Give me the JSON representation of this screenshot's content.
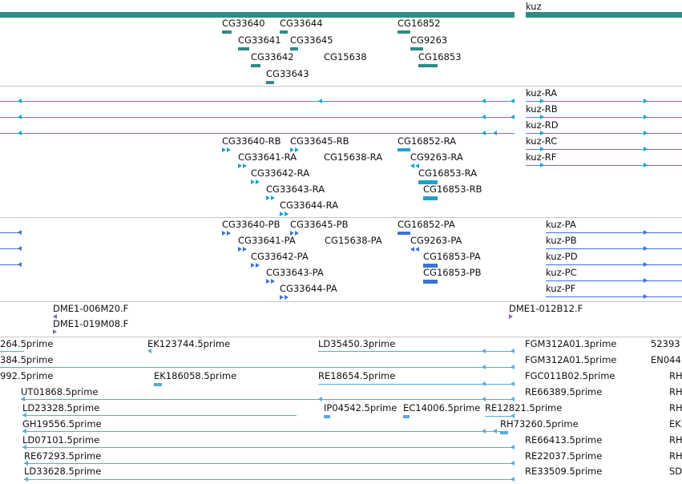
{
  "colors": {
    "gene": "#2e8b87",
    "transcript_ra": "#1fa3c8",
    "protein": "#3b73d6",
    "clone": "#8a66c4",
    "est": "#5aa9d6",
    "divider": "#c8c8c8"
  },
  "tracks": {
    "genes": {
      "items": [
        {
          "label": "CG33640"
        },
        {
          "label": "CG33644"
        },
        {
          "label": "CG16852"
        },
        {
          "label": "kuz"
        },
        {
          "label": "CG33641"
        },
        {
          "label": "CG33645"
        },
        {
          "label": "CG9263"
        },
        {
          "label": "CG33642"
        },
        {
          "label": "CG15638"
        },
        {
          "label": "CG16853"
        },
        {
          "label": "CG33643"
        }
      ]
    },
    "transcripts": {
      "items": [
        {
          "label": "kuz-RA"
        },
        {
          "label": "kuz-RB"
        },
        {
          "label": "kuz-RD"
        },
        {
          "label": "CG33640-RB"
        },
        {
          "label": "CG33645-RB"
        },
        {
          "label": "CG16852-RA"
        },
        {
          "label": "kuz-RC"
        },
        {
          "label": "CG33641-RA"
        },
        {
          "label": "CG15638-RA"
        },
        {
          "label": "CG9263-RA"
        },
        {
          "label": "kuz-RF"
        },
        {
          "label": "CG33642-RA"
        },
        {
          "label": "CG16853-RA"
        },
        {
          "label": "CG33643-RA"
        },
        {
          "label": "CG16853-RB"
        },
        {
          "label": "CG33644-RA"
        }
      ]
    },
    "proteins": {
      "items": [
        {
          "label": "CG33640-PB"
        },
        {
          "label": "CG33645-PB"
        },
        {
          "label": "CG16852-PA"
        },
        {
          "label": "kuz-PA"
        },
        {
          "label": "CG33641-PA"
        },
        {
          "label": "CG15638-PA"
        },
        {
          "label": "CG9263-PA"
        },
        {
          "label": "kuz-PB"
        },
        {
          "label": "CG33642-PA"
        },
        {
          "label": "CG16853-PA"
        },
        {
          "label": "kuz-PD"
        },
        {
          "label": "CG33643-PA"
        },
        {
          "label": "CG16853-PB"
        },
        {
          "label": "kuz-PC"
        },
        {
          "label": "CG33644-PA"
        },
        {
          "label": "kuz-PF"
        }
      ]
    },
    "clones": {
      "items": [
        {
          "label": "DME1-006M20.F"
        },
        {
          "label": "DME1-012B12.F"
        },
        {
          "label": "DME1-019M08.F"
        }
      ]
    },
    "ests": {
      "items": [
        {
          "label": "264.5prime"
        },
        {
          "label": "EK123744.5prime"
        },
        {
          "label": "LD35450.3prime"
        },
        {
          "label": "FGM312A01.3prime"
        },
        {
          "label": "52393"
        },
        {
          "label": "384.5prime"
        },
        {
          "label": "FGM312A01.5prime"
        },
        {
          "label": "EN044"
        },
        {
          "label": "992.5prime"
        },
        {
          "label": "EK186058.5prime"
        },
        {
          "label": "RE18654.5prime"
        },
        {
          "label": "FGC011B02.5prime"
        },
        {
          "label": "RH"
        },
        {
          "label": "UT01868.5prime"
        },
        {
          "label": "RE66389.5prime"
        },
        {
          "label": "RH"
        },
        {
          "label": "LD23328.5prime"
        },
        {
          "label": "IP04542.5prime"
        },
        {
          "label": "EC14006.5prime"
        },
        {
          "label": "RE12821.5prime"
        },
        {
          "label": "RH"
        },
        {
          "label": "GH19556.5prime"
        },
        {
          "label": "RH73260.5prime"
        },
        {
          "label": "EK"
        },
        {
          "label": "LD07101.5prime"
        },
        {
          "label": "RE66413.5prime"
        },
        {
          "label": "RH"
        },
        {
          "label": "RE67293.5prime"
        },
        {
          "label": "RE22037.5prime"
        },
        {
          "label": "RH"
        },
        {
          "label": "LD33628.5prime"
        },
        {
          "label": "RE33509.5prime"
        },
        {
          "label": "SD"
        }
      ]
    }
  }
}
